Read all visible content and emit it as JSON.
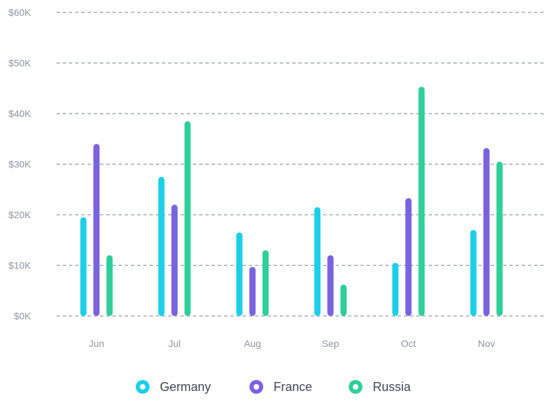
{
  "chart_data": {
    "type": "bar",
    "categories": [
      "Jun",
      "Jul",
      "Aug",
      "Sep",
      "Oct",
      "Nov"
    ],
    "series": [
      {
        "name": "Germany",
        "color": "#1ccfe9",
        "values": [
          19500,
          27500,
          16500,
          21500,
          10500,
          17000
        ]
      },
      {
        "name": "France",
        "color": "#7a63e0",
        "values": [
          34000,
          22000,
          9700,
          12000,
          23300,
          33200
        ]
      },
      {
        "name": "Russia",
        "color": "#2ecf98",
        "values": [
          12000,
          38500,
          13000,
          6200,
          45300,
          30500
        ]
      }
    ],
    "y_ticks": [
      "$0K",
      "$10K",
      "$20K",
      "$30K",
      "$40K",
      "$50K",
      "$60K"
    ],
    "ylim": [
      0,
      60000
    ],
    "grid": true,
    "legend_position": "bottom-center"
  }
}
